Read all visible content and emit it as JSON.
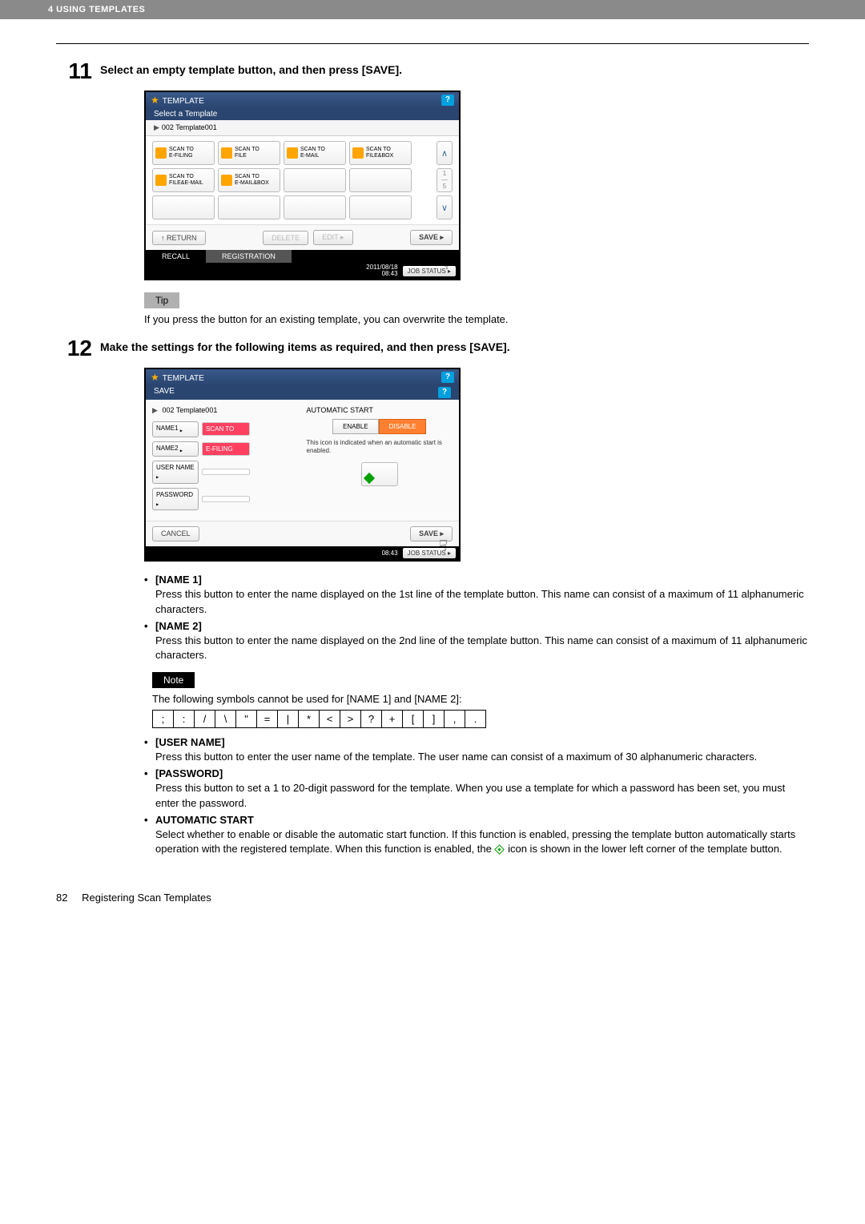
{
  "header": {
    "chapter": "4 USING TEMPLATES"
  },
  "step11": {
    "num": "11",
    "title": "Select an empty template button, and then press [SAVE].",
    "ui": {
      "title": "TEMPLATE",
      "sub": "Select a Template",
      "breadcrumb": "002 Template001",
      "cells": [
        {
          "l1": "SCAN TO",
          "l2": "E-FILING"
        },
        {
          "l1": "SCAN TO",
          "l2": "FILE"
        },
        {
          "l1": "SCAN TO",
          "l2": "E-MAIL"
        },
        {
          "l1": "SCAN TO",
          "l2": "FILE&BOX"
        },
        {
          "l1": "SCAN TO",
          "l2": "FILE&E-MAIL"
        },
        {
          "l1": "SCAN TO",
          "l2": "E-MAIL&BOX"
        }
      ],
      "scroll_mid_top": "1",
      "scroll_mid_bot": "5",
      "return": "RETURN",
      "delete": "DELETE",
      "edit": "EDIT",
      "save": "SAVE",
      "tab_recall": "RECALL",
      "tab_reg": "REGISTRATION",
      "timestamp": "2011/08/18\n08:43",
      "jobstatus": "JOB STATUS"
    },
    "tip_label": "Tip",
    "tip_text": "If you press the button for an existing template, you can overwrite the template."
  },
  "step12": {
    "num": "12",
    "title": "Make the settings for the following items as required, and then press [SAVE].",
    "ui": {
      "title": "TEMPLATE",
      "sub": "SAVE",
      "breadcrumb": "002  Template001",
      "name1_lbl": "NAME1",
      "name1_val": "SCAN TO",
      "name2_lbl": "NAME2",
      "name2_val": "E-FILING",
      "user_lbl": "USER NAME",
      "pass_lbl": "PASSWORD",
      "auto_title": "AUTOMATIC START",
      "enable": "ENABLE",
      "disable": "DISABLE",
      "auto_note": "This icon is indicated when an automatic start is enabled.",
      "cancel": "CANCEL",
      "save": "SAVE",
      "timestamp": "08:43",
      "jobstatus": "JOB STATUS"
    },
    "bullets": {
      "name1_h": "[NAME 1]",
      "name1_d": "Press this button to enter the name displayed on the 1st line of the template button. This name can consist of a maximum of 11 alphanumeric characters.",
      "name2_h": "[NAME 2]",
      "name2_d": "Press this button to enter the name displayed on the 2nd line of the template button. This name can consist of a maximum of 11 alphanumeric characters.",
      "user_h": "[USER NAME]",
      "user_d": "Press this button to enter the user name of the template. The user name can consist of a maximum of 30 alphanumeric characters.",
      "pass_h": "[PASSWORD]",
      "pass_d": "Press this button to set a 1 to 20-digit password for the template. When you use a template for which a password has been set, you must enter the password.",
      "auto_h": "AUTOMATIC START",
      "auto_d1": "Select whether to enable or disable the automatic start function. If this function is enabled, pressing the template button automatically starts operation with the registered template. When this function is enabled, the ",
      "auto_d2": " icon is shown in the lower left corner of the template button."
    },
    "note_label": "Note",
    "note_text": "The following symbols cannot be used for [NAME 1] and [NAME 2]:",
    "symbols": [
      ";",
      ":",
      "/",
      "\\",
      "\"",
      "=",
      "|",
      "*",
      "<",
      ">",
      "?",
      "+",
      "[",
      "]",
      ",",
      "."
    ]
  },
  "footer": {
    "page": "82",
    "title": "Registering Scan Templates"
  }
}
